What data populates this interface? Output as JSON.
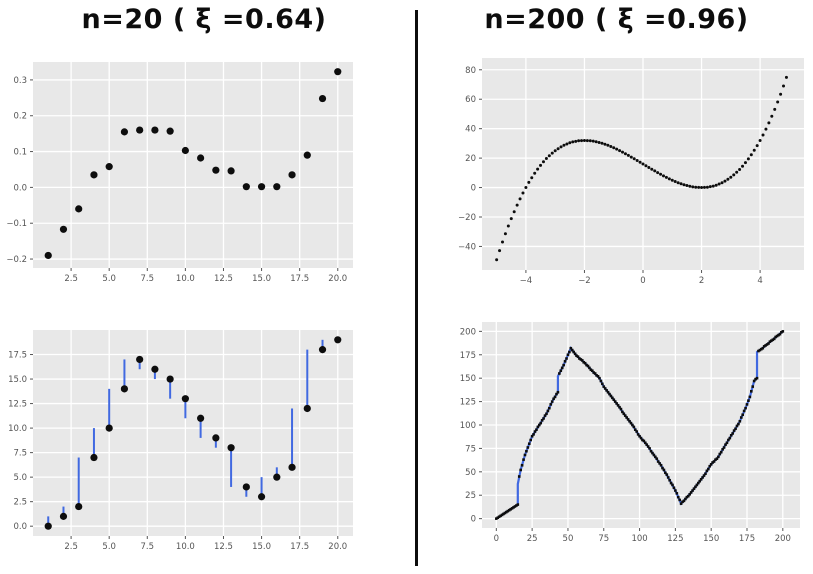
{
  "titles": {
    "left": "n=20 ( ξ =0.64)",
    "right": "n=200 ( ξ =0.96)"
  },
  "style": {
    "page_bg": "#ffffff",
    "plot_bg": "#e8e8e8",
    "grid_color": "#ffffff",
    "tick_color": "#555555",
    "marker_color": "#0d0d0d",
    "line_color": "#4169e1",
    "divider_color": "#0d0d0d",
    "title_color": "#0d0d0d"
  },
  "chart_data": [
    {
      "id": "plot-scatter-n20",
      "type": "scatter",
      "title": "",
      "xlabel": "",
      "ylabel": "",
      "x": [
        1,
        2,
        3,
        4,
        5,
        6,
        7,
        8,
        9,
        10,
        11,
        12,
        13,
        14,
        15,
        16,
        17,
        18,
        19,
        20
      ],
      "y": [
        -0.19,
        -0.117,
        -0.06,
        0.035,
        0.058,
        0.155,
        0.16,
        0.16,
        0.157,
        0.103,
        0.082,
        0.048,
        0.046,
        0.002,
        0.002,
        0.002,
        0.035,
        0.09,
        0.248,
        0.323
      ],
      "xlim": [
        0,
        21
      ],
      "ylim": [
        -0.225,
        0.35
      ],
      "xticks": [
        2.5,
        5,
        7.5,
        10,
        12.5,
        15,
        17.5,
        20
      ],
      "xtick_labels": [
        "2.5",
        "5.0",
        "7.5",
        "10.0",
        "12.5",
        "15.0",
        "17.5",
        "20.0"
      ],
      "yticks": [
        -0.2,
        -0.1,
        0,
        0.1,
        0.2,
        0.3
      ],
      "ytick_labels": [
        "−0.2",
        "−0.1",
        "0.0",
        "0.1",
        "0.2",
        "0.3"
      ],
      "grid": true,
      "legend": "none",
      "marker_r": 3.6
    },
    {
      "id": "plot-scatter-n200",
      "type": "scatter",
      "title": "",
      "xlabel": "",
      "ylabel": "",
      "x_start": -5.0,
      "x_step": 0.1,
      "y": [
        -49.0,
        -42.8,
        -37.0,
        -31.4,
        -26.1,
        -21.1,
        -16.4,
        -11.9,
        -7.7,
        -3.7,
        0.0,
        3.5,
        6.7,
        9.7,
        12.5,
        15.1,
        17.5,
        19.7,
        21.6,
        23.4,
        25.0,
        26.4,
        27.6,
        28.7,
        29.6,
        30.4,
        31.0,
        31.4,
        31.8,
        31.9,
        32.0,
        31.9,
        31.8,
        31.5,
        31.1,
        30.6,
        30.1,
        29.4,
        28.7,
        27.9,
        27.0,
        26.1,
        25.1,
        24.1,
        23.0,
        21.9,
        20.7,
        19.6,
        18.4,
        17.2,
        16.0,
        14.8,
        13.6,
        12.4,
        11.3,
        10.1,
        9.0,
        7.9,
        6.9,
        5.9,
        5.0,
        4.1,
        3.3,
        2.6,
        1.9,
        1.4,
        0.9,
        0.5,
        0.2,
        0.1,
        0.0,
        0.1,
        0.2,
        0.6,
        1.0,
        1.6,
        2.4,
        3.3,
        4.4,
        5.6,
        7.0,
        8.6,
        10.4,
        12.3,
        14.5,
        16.9,
        19.5,
        22.3,
        25.3,
        28.5,
        32.0,
        35.7,
        39.7,
        43.9,
        48.4,
        53.1,
        58.1,
        63.4,
        69.0,
        74.8
      ],
      "xlim": [
        -5.5,
        5.5
      ],
      "ylim": [
        -56,
        88
      ],
      "xticks": [
        -4,
        -2,
        0,
        2,
        4
      ],
      "xtick_labels": [
        "−4",
        "−2",
        "0",
        "2",
        "4"
      ],
      "yticks": [
        -40,
        -20,
        0,
        20,
        40,
        60,
        80
      ],
      "ytick_labels": [
        "−40",
        "−20",
        "0",
        "20",
        "40",
        "60",
        "80"
      ],
      "grid": true,
      "legend": "none",
      "marker_r": 1.5
    },
    {
      "id": "plot-rank-n20",
      "type": "scatter-sticks",
      "title": "",
      "xlabel": "",
      "ylabel": "",
      "x": [
        1,
        2,
        3,
        4,
        5,
        6,
        7,
        8,
        9,
        10,
        11,
        12,
        13,
        14,
        15,
        16,
        17,
        18,
        19,
        20
      ],
      "y": [
        0,
        1,
        2,
        7,
        10,
        14,
        17,
        16,
        15,
        13,
        11,
        9,
        8,
        4,
        3,
        5,
        6,
        12,
        18,
        19
      ],
      "xlim": [
        0,
        21
      ],
      "ylim": [
        -1,
        20
      ],
      "xticks": [
        2.5,
        5,
        7.5,
        10,
        12.5,
        15,
        17.5,
        20
      ],
      "xtick_labels": [
        "2.5",
        "5.0",
        "7.5",
        "10.0",
        "12.5",
        "15.0",
        "17.5",
        "20.0"
      ],
      "yticks": [
        0,
        2.5,
        5,
        7.5,
        10,
        12.5,
        15,
        17.5
      ],
      "ytick_labels": [
        "0.0",
        "2.5",
        "5.0",
        "7.5",
        "10.0",
        "12.5",
        "15.0",
        "17.5"
      ],
      "grid": true,
      "legend": "none",
      "marker_r": 3.6,
      "stick_width": 2
    },
    {
      "id": "plot-rank-n200",
      "type": "rank-line",
      "title": "",
      "xlabel": "",
      "ylabel": "",
      "n": 200,
      "vertices": [
        [
          0,
          0
        ],
        [
          15,
          15
        ],
        [
          15,
          37
        ],
        [
          17,
          52
        ],
        [
          20,
          68
        ],
        [
          25,
          88
        ],
        [
          30,
          100
        ],
        [
          35,
          112
        ],
        [
          40,
          128
        ],
        [
          43,
          135
        ],
        [
          43,
          152
        ],
        [
          47,
          164
        ],
        [
          52,
          182
        ],
        [
          56,
          174
        ],
        [
          62,
          166
        ],
        [
          68,
          156
        ],
        [
          72,
          150
        ],
        [
          75,
          141
        ],
        [
          80,
          131
        ],
        [
          85,
          121
        ],
        [
          90,
          110
        ],
        [
          95,
          100
        ],
        [
          100,
          88
        ],
        [
          105,
          79
        ],
        [
          110,
          68
        ],
        [
          115,
          57
        ],
        [
          120,
          44
        ],
        [
          125,
          30
        ],
        [
          129,
          16
        ],
        [
          135,
          26
        ],
        [
          140,
          36
        ],
        [
          145,
          46
        ],
        [
          150,
          58
        ],
        [
          155,
          66
        ],
        [
          160,
          79
        ],
        [
          165,
          91
        ],
        [
          170,
          104
        ],
        [
          174,
          118
        ],
        [
          177,
          130
        ],
        [
          180,
          147
        ],
        [
          182,
          150
        ],
        [
          182,
          178
        ],
        [
          185,
          181
        ],
        [
          200,
          200
        ]
      ],
      "xlim": [
        -10,
        212
      ],
      "ylim": [
        -10,
        210
      ],
      "xticks": [
        0,
        25,
        50,
        75,
        100,
        125,
        150,
        175,
        200
      ],
      "xtick_labels": [
        "0",
        "25",
        "50",
        "75",
        "100",
        "125",
        "150",
        "175",
        "200"
      ],
      "yticks": [
        0,
        25,
        50,
        75,
        100,
        125,
        150,
        175,
        200
      ],
      "ytick_labels": [
        "0",
        "25",
        "50",
        "75",
        "100",
        "125",
        "150",
        "175",
        "200"
      ],
      "grid": true,
      "legend": "none",
      "marker_r": 1.3,
      "line_width": 2.2
    }
  ]
}
